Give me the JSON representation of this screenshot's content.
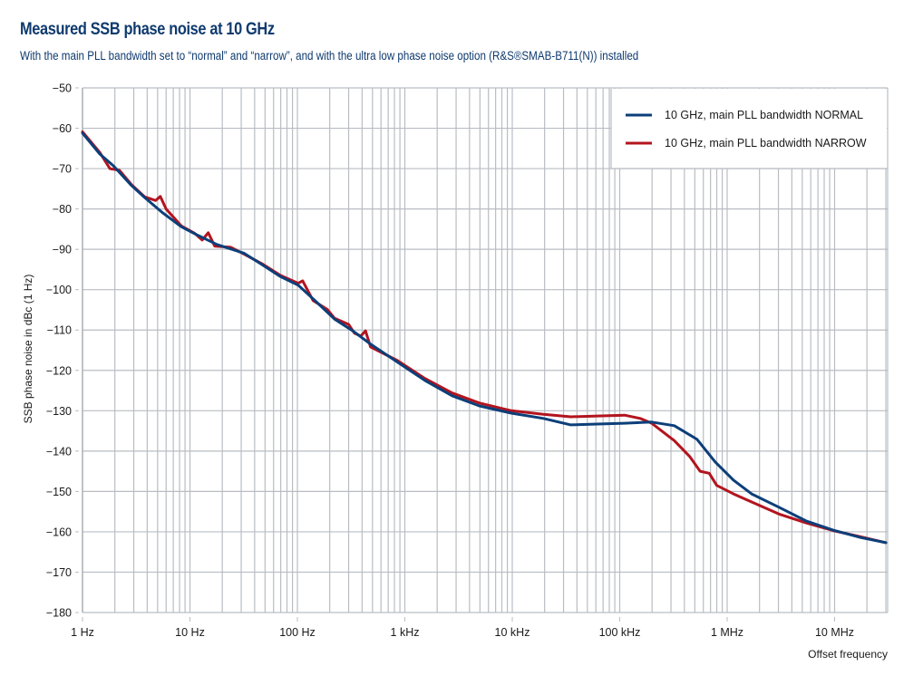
{
  "header": {
    "title": "Measured SSB phase noise at 10 GHz",
    "subtitle": "With the main PLL bandwidth set to “normal” and “narrow”, and with the ultra low phase noise option (R&S®SMAB-B711(N)) installed"
  },
  "chart_data": {
    "type": "line",
    "title": "Measured SSB phase noise at 10 GHz",
    "subtitle": "With the main PLL bandwidth set to “normal” and “narrow”, and with the ultra low phase noise option (R&S®SMAB-B711(N)) installed",
    "xlabel": "Offset frequency",
    "ylabel": "SSB phase noise in dBc (1 Hz)",
    "xscale": "log",
    "xlim_hz": [
      1,
      30000000
    ],
    "ylim": [
      -180,
      -50
    ],
    "grid": true,
    "legend_position": "top-right",
    "x_ticks": [
      {
        "value": 1,
        "label": "1 Hz"
      },
      {
        "value": 10,
        "label": "10 Hz"
      },
      {
        "value": 100,
        "label": "100 Hz"
      },
      {
        "value": 1000,
        "label": "1 kHz"
      },
      {
        "value": 10000,
        "label": "10 kHz"
      },
      {
        "value": 100000,
        "label": "100 kHz"
      },
      {
        "value": 1000000,
        "label": "1 MHz"
      },
      {
        "value": 10000000,
        "label": "10 MHz"
      }
    ],
    "y_ticks": [
      {
        "value": -50,
        "label": "−50"
      },
      {
        "value": -60,
        "label": "−60"
      },
      {
        "value": -70,
        "label": "−70"
      },
      {
        "value": -80,
        "label": "−80"
      },
      {
        "value": -90,
        "label": "−90"
      },
      {
        "value": -100,
        "label": "−100"
      },
      {
        "value": -110,
        "label": "−110"
      },
      {
        "value": -120,
        "label": "−120"
      },
      {
        "value": -130,
        "label": "−130"
      },
      {
        "value": -140,
        "label": "−140"
      },
      {
        "value": -150,
        "label": "−150"
      },
      {
        "value": -160,
        "label": "−160"
      },
      {
        "value": -170,
        "label": "−170"
      },
      {
        "value": -180,
        "label": "−180"
      }
    ],
    "series": [
      {
        "name": "10 GHz, main PLL bandwidth NORMAL",
        "color": "#0c3f7a",
        "points": [
          [
            1,
            -61.2
          ],
          [
            1.45,
            -66.4
          ],
          [
            1.94,
            -69.3
          ],
          [
            2.86,
            -74.2
          ],
          [
            3.8,
            -77.2
          ],
          [
            5.6,
            -81
          ],
          [
            8.3,
            -84.4
          ],
          [
            11,
            -86.1
          ],
          [
            17.8,
            -88.8
          ],
          [
            32,
            -91
          ],
          [
            47,
            -93.8
          ],
          [
            69,
            -96.7
          ],
          [
            102,
            -98.9
          ],
          [
            150,
            -103
          ],
          [
            222,
            -107.3
          ],
          [
            327,
            -110.2
          ],
          [
            480,
            -113.5
          ],
          [
            860,
            -118
          ],
          [
            1540,
            -122.5
          ],
          [
            2760,
            -126.3
          ],
          [
            4950,
            -128.8
          ],
          [
            9800,
            -130.6
          ],
          [
            19500,
            -131.9
          ],
          [
            35000,
            -133.5
          ],
          [
            62000,
            -133.3
          ],
          [
            111000,
            -133.1
          ],
          [
            198000,
            -132.8
          ],
          [
            322000,
            -133.7
          ],
          [
            525000,
            -137.1
          ],
          [
            776000,
            -142.7
          ],
          [
            1145000,
            -147.2
          ],
          [
            1690000,
            -150.6
          ],
          [
            3030000,
            -153.9
          ],
          [
            5420000,
            -157.3
          ],
          [
            9700000,
            -159.6
          ],
          [
            17400000,
            -161.4
          ],
          [
            30000000,
            -162.7
          ]
        ]
      },
      {
        "name": "10 GHz, main PLL bandwidth NARROW",
        "color": "#b3141e",
        "points": [
          [
            1,
            -60.9
          ],
          [
            1.45,
            -66
          ],
          [
            1.8,
            -70
          ],
          [
            2.2,
            -70.4
          ],
          [
            2.86,
            -74
          ],
          [
            3.8,
            -77
          ],
          [
            4.8,
            -77.9
          ],
          [
            5.3,
            -76.9
          ],
          [
            6.0,
            -80
          ],
          [
            8.3,
            -84.2
          ],
          [
            11,
            -86
          ],
          [
            13,
            -87.7
          ],
          [
            14.8,
            -85.9
          ],
          [
            17,
            -89.2
          ],
          [
            24,
            -89.5
          ],
          [
            32,
            -91.2
          ],
          [
            47,
            -93.6
          ],
          [
            69,
            -96.4
          ],
          [
            102,
            -98.4
          ],
          [
            112,
            -97.8
          ],
          [
            140,
            -102.7
          ],
          [
            190,
            -104.9
          ],
          [
            222,
            -107.1
          ],
          [
            300,
            -108.6
          ],
          [
            340,
            -110.8
          ],
          [
            390,
            -111.5
          ],
          [
            430,
            -110.2
          ],
          [
            480,
            -114.2
          ],
          [
            860,
            -117.6
          ],
          [
            1540,
            -122
          ],
          [
            2760,
            -125.6
          ],
          [
            4950,
            -128.1
          ],
          [
            9800,
            -130
          ],
          [
            19500,
            -130.9
          ],
          [
            35000,
            -131.5
          ],
          [
            62000,
            -131.3
          ],
          [
            111000,
            -131.1
          ],
          [
            155000,
            -131.9
          ],
          [
            198000,
            -133.1
          ],
          [
            322000,
            -137.4
          ],
          [
            450000,
            -141.4
          ],
          [
            560000,
            -145
          ],
          [
            680000,
            -145.5
          ],
          [
            800000,
            -148.5
          ],
          [
            1145000,
            -150.6
          ],
          [
            1690000,
            -152.6
          ],
          [
            3030000,
            -155.6
          ],
          [
            5420000,
            -157.8
          ],
          [
            9700000,
            -159.7
          ],
          [
            17400000,
            -161.2
          ],
          [
            30000000,
            -162.7
          ]
        ]
      }
    ]
  }
}
